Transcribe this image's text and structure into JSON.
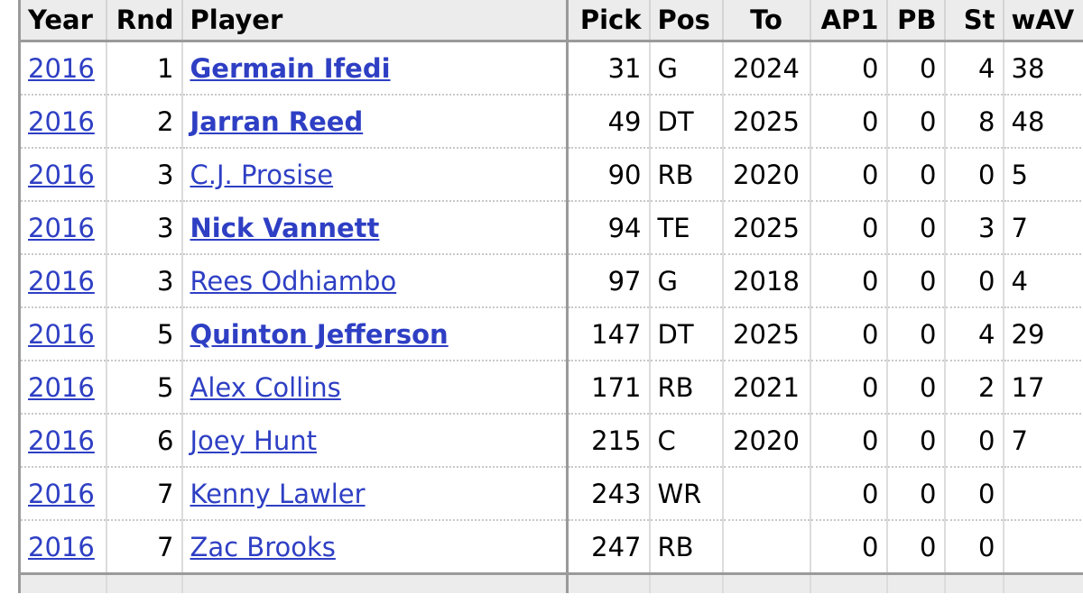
{
  "columns": {
    "year": "Year",
    "rnd": "Rnd",
    "player": "Player",
    "pick": "Pick",
    "pos": "Pos",
    "to": "To",
    "ap1": "AP1",
    "pb": "PB",
    "st": "St",
    "wav": "wAV"
  },
  "rows": [
    {
      "year": "2016",
      "rnd": "1",
      "player": "Germain Ifedi",
      "bold": true,
      "pick": "31",
      "pos": "G",
      "to": "2024",
      "ap1": "0",
      "pb": "0",
      "st": "4",
      "wav": "38"
    },
    {
      "year": "2016",
      "rnd": "2",
      "player": "Jarran Reed",
      "bold": true,
      "pick": "49",
      "pos": "DT",
      "to": "2025",
      "ap1": "0",
      "pb": "0",
      "st": "8",
      "wav": "48"
    },
    {
      "year": "2016",
      "rnd": "3",
      "player": "C.J. Prosise",
      "bold": false,
      "pick": "90",
      "pos": "RB",
      "to": "2020",
      "ap1": "0",
      "pb": "0",
      "st": "0",
      "wav": "5"
    },
    {
      "year": "2016",
      "rnd": "3",
      "player": "Nick Vannett",
      "bold": true,
      "pick": "94",
      "pos": "TE",
      "to": "2025",
      "ap1": "0",
      "pb": "0",
      "st": "3",
      "wav": "7"
    },
    {
      "year": "2016",
      "rnd": "3",
      "player": "Rees Odhiambo",
      "bold": false,
      "pick": "97",
      "pos": "G",
      "to": "2018",
      "ap1": "0",
      "pb": "0",
      "st": "0",
      "wav": "4"
    },
    {
      "year": "2016",
      "rnd": "5",
      "player": "Quinton Jefferson",
      "bold": true,
      "pick": "147",
      "pos": "DT",
      "to": "2025",
      "ap1": "0",
      "pb": "0",
      "st": "4",
      "wav": "29"
    },
    {
      "year": "2016",
      "rnd": "5",
      "player": "Alex Collins",
      "bold": false,
      "pick": "171",
      "pos": "RB",
      "to": "2021",
      "ap1": "0",
      "pb": "0",
      "st": "2",
      "wav": "17"
    },
    {
      "year": "2016",
      "rnd": "6",
      "player": "Joey Hunt",
      "bold": false,
      "pick": "215",
      "pos": "C",
      "to": "2020",
      "ap1": "0",
      "pb": "0",
      "st": "0",
      "wav": "7"
    },
    {
      "year": "2016",
      "rnd": "7",
      "player": "Kenny Lawler",
      "bold": false,
      "pick": "243",
      "pos": "WR",
      "to": "",
      "ap1": "0",
      "pb": "0",
      "st": "0",
      "wav": ""
    },
    {
      "year": "2016",
      "rnd": "7",
      "player": "Zac Brooks",
      "bold": false,
      "pick": "247",
      "pos": "RB",
      "to": "",
      "ap1": "0",
      "pb": "0",
      "st": "0",
      "wav": ""
    }
  ]
}
